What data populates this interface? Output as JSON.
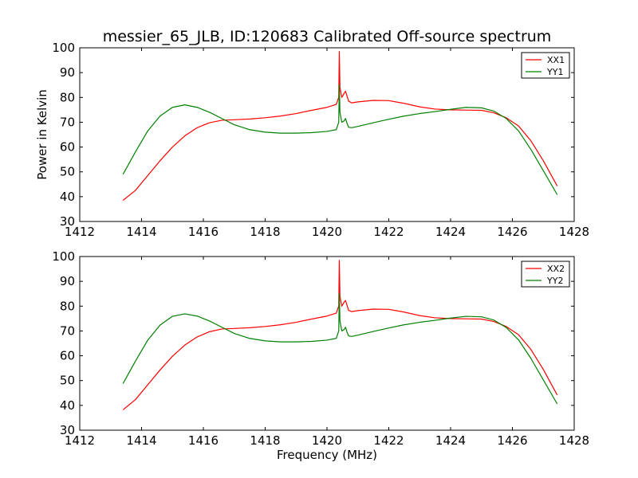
{
  "figure": {
    "title": "messier_65_JLB, ID:120683 Calibrated Off-source spectrum",
    "xlabel": "Frequency (MHz)",
    "ylabel": "Power in Kelvin"
  },
  "chart_data": [
    {
      "type": "line",
      "title": "messier_65_JLB, ID:120683 Calibrated Off-source spectrum",
      "xlabel": "",
      "ylabel": "Power in Kelvin",
      "xlim": [
        1412,
        1428
      ],
      "ylim": [
        30,
        100
      ],
      "xticks": [
        1412,
        1414,
        1416,
        1418,
        1420,
        1422,
        1424,
        1426,
        1428
      ],
      "yticks": [
        30,
        40,
        50,
        60,
        70,
        80,
        90,
        100
      ],
      "grid": false,
      "legend_position": "top-right",
      "series": [
        {
          "name": "XX1",
          "color": "#ff0000",
          "x": [
            1413.4,
            1413.8,
            1414.2,
            1414.6,
            1415.0,
            1415.4,
            1415.8,
            1416.2,
            1416.6,
            1417.0,
            1417.5,
            1418.0,
            1418.5,
            1419.0,
            1419.5,
            1420.0,
            1420.3,
            1420.38,
            1420.4,
            1420.42,
            1420.48,
            1420.55,
            1420.6,
            1420.65,
            1420.7,
            1420.8,
            1421.0,
            1421.5,
            1422.0,
            1422.5,
            1423.0,
            1423.5,
            1424.0,
            1424.5,
            1425.0,
            1425.4,
            1425.8,
            1426.2,
            1426.6,
            1427.0,
            1427.45
          ],
          "values": [
            38.5,
            42.5,
            48.5,
            54.5,
            60.0,
            64.5,
            67.8,
            69.8,
            70.8,
            71.0,
            71.3,
            71.8,
            72.5,
            73.5,
            74.8,
            76.0,
            77.2,
            80.0,
            98.5,
            84.0,
            80.0,
            81.5,
            82.5,
            80.5,
            78.5,
            77.8,
            78.2,
            78.8,
            78.7,
            77.6,
            76.2,
            75.3,
            75.0,
            74.9,
            74.8,
            73.8,
            71.8,
            68.5,
            62.5,
            54.5,
            44.3
          ]
        },
        {
          "name": "YY1",
          "color": "#008000",
          "x": [
            1413.4,
            1413.8,
            1414.2,
            1414.6,
            1415.0,
            1415.4,
            1415.8,
            1416.2,
            1416.6,
            1417.0,
            1417.5,
            1418.0,
            1418.5,
            1419.0,
            1419.5,
            1420.0,
            1420.3,
            1420.38,
            1420.4,
            1420.42,
            1420.48,
            1420.55,
            1420.6,
            1420.65,
            1420.7,
            1420.8,
            1421.0,
            1421.5,
            1422.0,
            1422.5,
            1423.0,
            1423.5,
            1424.0,
            1424.5,
            1425.0,
            1425.4,
            1425.8,
            1426.2,
            1426.6,
            1427.0,
            1427.45
          ],
          "values": [
            49.0,
            58.0,
            66.5,
            72.5,
            76.0,
            77.0,
            76.0,
            74.0,
            71.5,
            69.0,
            67.0,
            66.0,
            65.6,
            65.6,
            65.8,
            66.3,
            67.0,
            70.0,
            85.0,
            74.0,
            70.0,
            70.5,
            71.5,
            69.5,
            68.0,
            67.8,
            68.3,
            69.8,
            71.2,
            72.5,
            73.5,
            74.3,
            75.2,
            76.0,
            75.8,
            74.5,
            71.5,
            66.5,
            59.0,
            50.5,
            40.8
          ]
        }
      ]
    },
    {
      "type": "line",
      "title": "",
      "xlabel": "Frequency (MHz)",
      "ylabel": "",
      "xlim": [
        1412,
        1428
      ],
      "ylim": [
        30,
        100
      ],
      "xticks": [
        1412,
        1414,
        1416,
        1418,
        1420,
        1422,
        1424,
        1426,
        1428
      ],
      "yticks": [
        30,
        40,
        50,
        60,
        70,
        80,
        90,
        100
      ],
      "grid": false,
      "legend_position": "top-right",
      "series": [
        {
          "name": "XX2",
          "color": "#ff0000",
          "x": [
            1413.4,
            1413.8,
            1414.2,
            1414.6,
            1415.0,
            1415.4,
            1415.8,
            1416.2,
            1416.6,
            1417.0,
            1417.5,
            1418.0,
            1418.5,
            1419.0,
            1419.5,
            1420.0,
            1420.3,
            1420.38,
            1420.4,
            1420.42,
            1420.48,
            1420.55,
            1420.6,
            1420.65,
            1420.7,
            1420.8,
            1421.0,
            1421.5,
            1422.0,
            1422.5,
            1423.0,
            1423.5,
            1424.0,
            1424.5,
            1425.0,
            1425.4,
            1425.8,
            1426.2,
            1426.6,
            1427.0,
            1427.45
          ],
          "values": [
            38.2,
            42.3,
            48.3,
            54.3,
            59.8,
            64.3,
            67.6,
            69.7,
            70.8,
            71.0,
            71.3,
            71.8,
            72.5,
            73.5,
            74.8,
            76.0,
            77.2,
            80.0,
            98.5,
            84.0,
            80.0,
            81.5,
            82.3,
            80.3,
            78.3,
            77.8,
            78.2,
            78.8,
            78.7,
            77.6,
            76.2,
            75.3,
            75.0,
            74.9,
            74.8,
            73.8,
            71.8,
            68.5,
            62.5,
            54.5,
            44.2
          ]
        },
        {
          "name": "YY2",
          "color": "#008000",
          "x": [
            1413.4,
            1413.8,
            1414.2,
            1414.6,
            1415.0,
            1415.4,
            1415.8,
            1416.2,
            1416.6,
            1417.0,
            1417.5,
            1418.0,
            1418.5,
            1419.0,
            1419.5,
            1420.0,
            1420.3,
            1420.38,
            1420.4,
            1420.42,
            1420.48,
            1420.55,
            1420.6,
            1420.65,
            1420.7,
            1420.8,
            1421.0,
            1421.5,
            1422.0,
            1422.5,
            1423.0,
            1423.5,
            1424.0,
            1424.5,
            1425.0,
            1425.4,
            1425.8,
            1426.2,
            1426.6,
            1427.0,
            1427.45
          ],
          "values": [
            48.8,
            57.8,
            66.3,
            72.4,
            75.9,
            76.9,
            76.0,
            74.0,
            71.5,
            69.0,
            67.0,
            66.0,
            65.6,
            65.6,
            65.8,
            66.3,
            67.0,
            70.0,
            85.0,
            74.0,
            70.0,
            70.5,
            71.5,
            69.5,
            68.0,
            67.8,
            68.3,
            69.8,
            71.2,
            72.5,
            73.5,
            74.3,
            75.2,
            75.9,
            75.7,
            74.4,
            71.4,
            66.4,
            58.9,
            50.3,
            40.6
          ]
        }
      ]
    }
  ]
}
